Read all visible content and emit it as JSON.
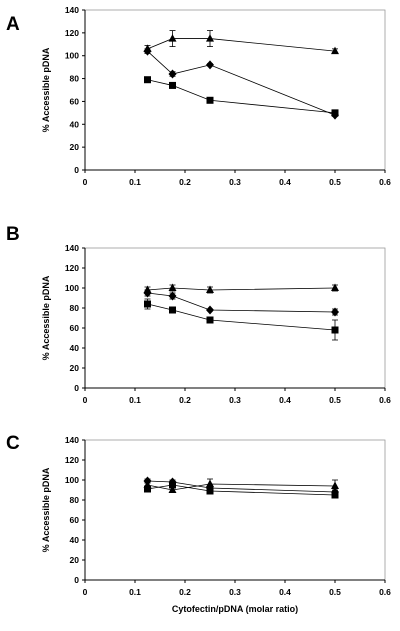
{
  "chart_data": [
    {
      "type": "line",
      "panel_label": "A",
      "ylabel": "% Accessible pDNA",
      "xlabel": "",
      "xlim": [
        0,
        0.6
      ],
      "ylim": [
        0,
        140
      ],
      "xticks": [
        "0",
        "0.1",
        "0.2",
        "0.3",
        "0.4",
        "0.5",
        "0.6"
      ],
      "yticks": [
        "0",
        "20",
        "40",
        "60",
        "80",
        "100",
        "120",
        "140"
      ],
      "grid": false,
      "series": [
        {
          "marker": "triangle",
          "x": [
            0.125,
            0.175,
            0.25,
            0.5
          ],
          "y": [
            106,
            115,
            115,
            104
          ],
          "err": [
            3,
            7,
            7,
            2
          ]
        },
        {
          "marker": "diamond",
          "x": [
            0.125,
            0.175,
            0.25,
            0.5
          ],
          "y": [
            104,
            84,
            92,
            48
          ],
          "err": [
            2,
            2,
            1,
            1
          ]
        },
        {
          "marker": "square",
          "x": [
            0.125,
            0.175,
            0.25,
            0.5
          ],
          "y": [
            79,
            74,
            61,
            50
          ],
          "err": [
            2,
            1,
            1,
            1
          ]
        }
      ]
    },
    {
      "type": "line",
      "panel_label": "B",
      "ylabel": "% Accessible pDNA",
      "xlabel": "",
      "xlim": [
        0,
        0.6
      ],
      "ylim": [
        0,
        140
      ],
      "xticks": [
        "0",
        "0.1",
        "0.2",
        "0.3",
        "0.4",
        "0.5",
        "0.6"
      ],
      "yticks": [
        "0",
        "20",
        "40",
        "60",
        "80",
        "100",
        "120",
        "140"
      ],
      "grid": false,
      "series": [
        {
          "marker": "triangle",
          "x": [
            0.125,
            0.175,
            0.25,
            0.5
          ],
          "y": [
            98,
            100,
            98,
            100
          ],
          "err": [
            3,
            3,
            3,
            3
          ]
        },
        {
          "marker": "diamond",
          "x": [
            0.125,
            0.175,
            0.25,
            0.5
          ],
          "y": [
            95,
            92,
            78,
            76
          ],
          "err": [
            3,
            3,
            1,
            3
          ]
        },
        {
          "marker": "square",
          "x": [
            0.125,
            0.175,
            0.25,
            0.5
          ],
          "y": [
            84,
            78,
            68,
            58
          ],
          "err": [
            5,
            1,
            1,
            10
          ]
        }
      ]
    },
    {
      "type": "line",
      "panel_label": "C",
      "ylabel": "% Accessible pDNA",
      "xlabel": "Cytofectin/pDNA (molar ratio)",
      "xlim": [
        0,
        0.6
      ],
      "ylim": [
        0,
        140
      ],
      "xticks": [
        "0",
        "0.1",
        "0.2",
        "0.3",
        "0.4",
        "0.5",
        "0.6"
      ],
      "yticks": [
        "0",
        "20",
        "40",
        "60",
        "80",
        "100",
        "120",
        "140"
      ],
      "grid": false,
      "series": [
        {
          "marker": "triangle",
          "x": [
            0.125,
            0.175,
            0.25,
            0.5
          ],
          "y": [
            95,
            90,
            96,
            94
          ],
          "err": [
            2,
            2,
            5,
            6
          ]
        },
        {
          "marker": "diamond",
          "x": [
            0.125,
            0.175,
            0.25,
            0.5
          ],
          "y": [
            99,
            98,
            92,
            88
          ],
          "err": [
            2,
            2,
            2,
            2
          ]
        },
        {
          "marker": "square",
          "x": [
            0.125,
            0.175,
            0.25,
            0.5
          ],
          "y": [
            91,
            95,
            89,
            85
          ],
          "err": [
            2,
            2,
            2,
            2
          ]
        }
      ]
    }
  ]
}
